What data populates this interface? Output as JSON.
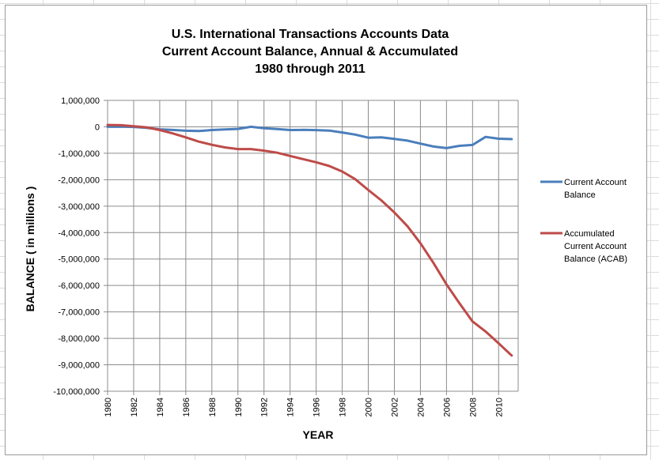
{
  "chart_data": {
    "type": "line",
    "title_lines": [
      "U.S. International Transactions Accounts Data",
      "Current  Account Balance, Annual & Accumulated",
      "1980 through 2011"
    ],
    "xlabel": "YEAR",
    "ylabel": "BALANCE  ( in millions )",
    "x": [
      1980,
      1981,
      1982,
      1983,
      1984,
      1985,
      1986,
      1987,
      1988,
      1989,
      1990,
      1991,
      1992,
      1993,
      1994,
      1995,
      1996,
      1997,
      1998,
      1999,
      2000,
      2001,
      2002,
      2003,
      2004,
      2005,
      2006,
      2007,
      2008,
      2009,
      2010,
      2011
    ],
    "x_ticks": [
      "1980",
      "1982",
      "1984",
      "1986",
      "1988",
      "1990",
      "1992",
      "1994",
      "1996",
      "1998",
      "2000",
      "2002",
      "2004",
      "2006",
      "2008",
      "2010"
    ],
    "y_ticks": [
      "1,000,000",
      "0",
      "-1,000,000",
      "-2,000,000",
      "-3,000,000",
      "-4,000,000",
      "-5,000,000",
      "-6,000,000",
      "-7,000,000",
      "-8,000,000",
      "-9,000,000",
      "-10,000,000"
    ],
    "ylim": [
      -10000000,
      1000000
    ],
    "xlim": [
      1980,
      2011.5
    ],
    "grid": true,
    "legend_position": "right",
    "series": [
      {
        "name": "Current Account Balance",
        "legend_lines": [
          "Current Account",
          "Balance"
        ],
        "color": "#4a7ebb",
        "values": [
          2317,
          5030,
          -5536,
          -38691,
          -94344,
          -118155,
          -147177,
          -160655,
          -121153,
          -99486,
          -78968,
          2897,
          -51613,
          -84805,
          -121612,
          -113567,
          -124764,
          -140726,
          -215062,
          -295530,
          -410756,
          -395328,
          -458087,
          -521342,
          -633768,
          -745434,
          -806726,
          -718098,
          -686641,
          -381636,
          -449471,
          -465926
        ]
      },
      {
        "name": "Accumulated Current Account Balance (ACAB)",
        "legend_lines": [
          "Accumulated",
          "Current Account",
          "Balance (ACAB)"
        ],
        "color": "#be4b48",
        "values": [
          70000,
          60000,
          20000,
          -20000,
          -120000,
          -250000,
          -400000,
          -560000,
          -680000,
          -780000,
          -840000,
          -840000,
          -900000,
          -980000,
          -1100000,
          -1220000,
          -1340000,
          -1480000,
          -1690000,
          -1980000,
          -2390000,
          -2780000,
          -3240000,
          -3760000,
          -4400000,
          -5150000,
          -5960000,
          -6680000,
          -7360000,
          -7740000,
          -8190000,
          -8650000
        ]
      }
    ]
  }
}
